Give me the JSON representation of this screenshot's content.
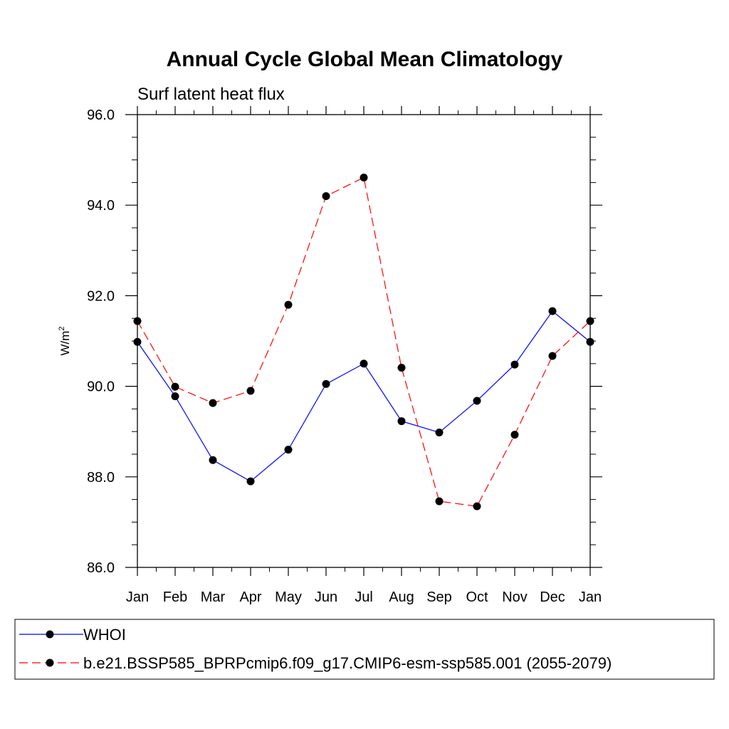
{
  "chart_data": {
    "type": "line",
    "title": "Annual Cycle Global Mean Climatology",
    "subtitle": "Surf latent heat flux",
    "xlabel": "",
    "ylabel": "W/m",
    "ylabel_superscript": "2",
    "categories": [
      "Jan",
      "Feb",
      "Mar",
      "Apr",
      "May",
      "Jun",
      "Jul",
      "Aug",
      "Sep",
      "Oct",
      "Nov",
      "Dec",
      "Jan"
    ],
    "ylim": [
      86.0,
      96.0
    ],
    "yticks": [
      "86.0",
      "88.0",
      "90.0",
      "92.0",
      "94.0",
      "96.0"
    ],
    "grid": false,
    "legend_position": "bottom",
    "series": [
      {
        "name": "WHOI",
        "color": "#0000ff",
        "dash": "solid",
        "values": [
          90.98,
          89.78,
          88.37,
          87.9,
          88.6,
          90.05,
          90.5,
          89.23,
          88.98,
          89.68,
          90.48,
          91.66,
          90.98
        ]
      },
      {
        "name": "b.e21.BSSP585_BPRPcmip6.f09_g17.CMIP6-esm-ssp585.001 (2055-2079)",
        "color": "#ff0000",
        "dash": "dashed",
        "values": [
          91.44,
          89.99,
          89.63,
          89.9,
          91.8,
          94.2,
          94.61,
          90.41,
          87.46,
          87.35,
          88.93,
          90.67,
          91.44
        ]
      }
    ]
  }
}
